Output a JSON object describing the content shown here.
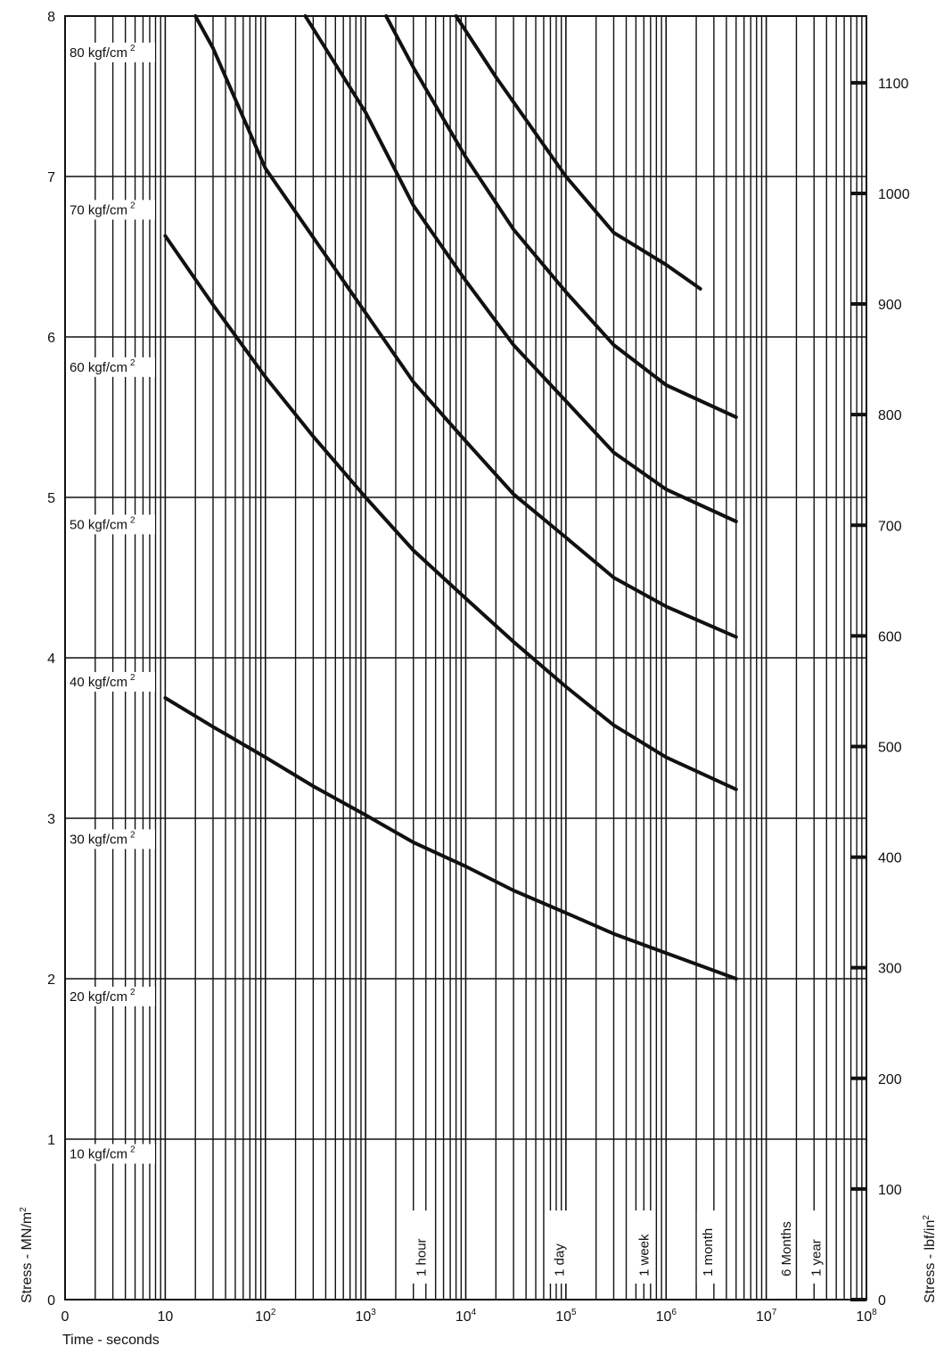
{
  "chart_data": {
    "type": "line",
    "xlabel": "Time - seconds",
    "ylabel": "Stress - MN/m",
    "ylabel_sup": "2",
    "y2label": "Stress - lbf/in",
    "y2label_sup": "2",
    "x_scale": "log",
    "x_range": [
      1,
      100000000
    ],
    "x_ticks": [
      {
        "value": 1,
        "base": "0",
        "exp": ""
      },
      {
        "value": 10,
        "base": "10",
        "exp": ""
      },
      {
        "value": 100,
        "base": "10",
        "exp": "2"
      },
      {
        "value": 1000,
        "base": "10",
        "exp": "3"
      },
      {
        "value": 10000,
        "base": "10",
        "exp": "4"
      },
      {
        "value": 100000,
        "base": "10",
        "exp": "5"
      },
      {
        "value": 1000000,
        "base": "10",
        "exp": "6"
      },
      {
        "value": 10000000,
        "base": "10",
        "exp": "7"
      },
      {
        "value": 100000000,
        "base": "10",
        "exp": "8"
      }
    ],
    "ylim": [
      0,
      8
    ],
    "y_ticks": [
      "0",
      "1",
      "2",
      "3",
      "4",
      "5",
      "6",
      "7",
      "8"
    ],
    "y2_ticks": [
      {
        "label": "0",
        "psi": 0
      },
      {
        "label": "100",
        "psi": 100
      },
      {
        "label": "200",
        "psi": 200
      },
      {
        "label": "300",
        "psi": 300
      },
      {
        "label": "400",
        "psi": 400
      },
      {
        "label": "500",
        "psi": 500
      },
      {
        "label": "600",
        "psi": 600
      },
      {
        "label": "700",
        "psi": 700
      },
      {
        "label": "800",
        "psi": 800
      },
      {
        "label": "900",
        "psi": 900
      },
      {
        "label": "1000",
        "psi": 1000
      },
      {
        "label": "1100",
        "psi": 1100
      }
    ],
    "kgf_labels": [
      {
        "text": "10 kgf/cm",
        "sup": "2",
        "stress": 1
      },
      {
        "text": "20 kgf/cm",
        "sup": "2",
        "stress": 2
      },
      {
        "text": "30 kgf/cm",
        "sup": "2",
        "stress": 3
      },
      {
        "text": "40 kgf/cm",
        "sup": "2",
        "stress": 4
      },
      {
        "text": "50 kgf/cm",
        "sup": "2",
        "stress": 5
      },
      {
        "text": "60 kgf/cm",
        "sup": "2",
        "stress": 6
      },
      {
        "text": "70 kgf/cm",
        "sup": "2",
        "stress": 7
      },
      {
        "text": "80 kgf/cm",
        "sup": "2",
        "stress": 8
      }
    ],
    "time_markers": [
      {
        "label": "1 hour",
        "seconds": 3600
      },
      {
        "label": "1 day",
        "seconds": 86400
      },
      {
        "label": "1 week",
        "seconds": 604800
      },
      {
        "label": "1 month",
        "seconds": 2600000
      },
      {
        "label": "6 Months",
        "seconds": 15800000
      },
      {
        "label": "1 year",
        "seconds": 31500000
      }
    ],
    "series": [
      {
        "x": [
          10,
          30,
          100,
          300,
          1000,
          3000,
          10000,
          30000,
          100000,
          300000,
          1000000,
          5000000
        ],
        "y": [
          3.75,
          3.57,
          3.38,
          3.2,
          3.02,
          2.85,
          2.7,
          2.55,
          2.41,
          2.28,
          2.16,
          2.0
        ]
      },
      {
        "x": [
          10,
          30,
          100,
          300,
          1000,
          3000,
          10000,
          30000,
          100000,
          300000,
          1000000,
          5000000
        ],
        "y": [
          6.63,
          6.2,
          5.75,
          5.38,
          5.0,
          4.67,
          4.37,
          4.1,
          3.82,
          3.58,
          3.38,
          3.18
        ]
      },
      {
        "x": [
          20,
          30,
          100,
          300,
          1000,
          3000,
          10000,
          30000,
          100000,
          300000,
          1000000,
          5000000
        ],
        "y": [
          8.0,
          7.8,
          7.05,
          6.62,
          6.15,
          5.72,
          5.35,
          5.02,
          4.75,
          4.5,
          4.32,
          4.13
        ]
      },
      {
        "x": [
          250,
          500,
          1000,
          3000,
          10000,
          30000,
          100000,
          300000,
          1000000,
          5000000
        ],
        "y": [
          8.0,
          7.7,
          7.4,
          6.82,
          6.35,
          5.95,
          5.6,
          5.28,
          5.05,
          4.85
        ]
      },
      {
        "x": [
          1600,
          3000,
          10000,
          30000,
          100000,
          300000,
          1000000,
          5000000
        ],
        "y": [
          8.0,
          7.68,
          7.12,
          6.67,
          6.28,
          5.95,
          5.7,
          5.5
        ]
      },
      {
        "x": [
          8000,
          20000,
          100000,
          300000,
          1000000,
          2200000
        ],
        "y": [
          8.0,
          7.62,
          7.0,
          6.65,
          6.45,
          6.3
        ]
      }
    ]
  }
}
